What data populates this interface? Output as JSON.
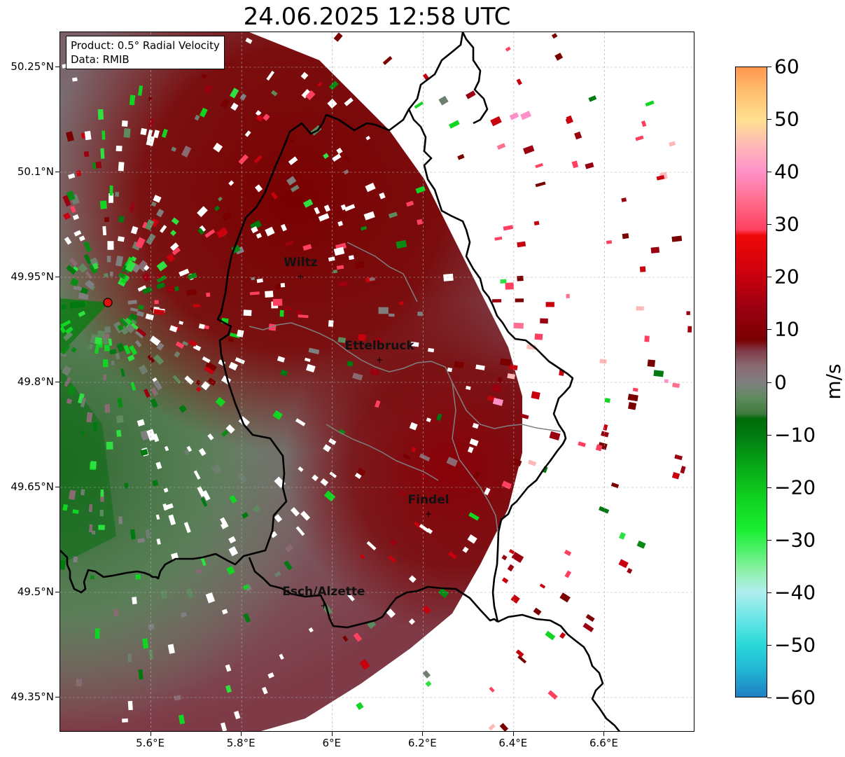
{
  "title": "24.06.2025 12:58 UTC",
  "info": {
    "product": "Product: 0.5° Radial Velocity",
    "source": "Data: RMIB"
  },
  "lat_ticks": [
    {
      "label": "50.25°N",
      "value": 50.25
    },
    {
      "label": "50.1°N",
      "value": 50.1
    },
    {
      "label": "49.95°N",
      "value": 49.95
    },
    {
      "label": "49.8°N",
      "value": 49.8
    },
    {
      "label": "49.65°N",
      "value": 49.65
    },
    {
      "label": "49.5°N",
      "value": 49.5
    },
    {
      "label": "49.35°N",
      "value": 49.35
    }
  ],
  "lon_ticks": [
    {
      "label": "5.6°E",
      "value": 5.6
    },
    {
      "label": "5.8°E",
      "value": 5.8
    },
    {
      "label": "6°E",
      "value": 6.0
    },
    {
      "label": "6.2°E",
      "value": 6.2
    },
    {
      "label": "6.4°E",
      "value": 6.4
    },
    {
      "label": "6.6°E",
      "value": 6.6
    }
  ],
  "extent": {
    "lon_min": 5.4,
    "lon_max": 6.8,
    "lat_min": 49.3,
    "lat_max": 50.3
  },
  "radar_site": {
    "lon": 5.505,
    "lat": 49.914,
    "color": "#e01010"
  },
  "cities": [
    {
      "name": "Wiltz",
      "lon": 5.93,
      "lat": 49.966
    },
    {
      "name": "Ettelbruck",
      "lon": 6.104,
      "lat": 49.847
    },
    {
      "name": "Findel",
      "lon": 6.212,
      "lat": 49.627
    },
    {
      "name": "Esch/Alzette",
      "lon": 5.981,
      "lat": 49.496
    }
  ],
  "colorbar": {
    "unit": "m/s",
    "min": -60,
    "max": 60,
    "ticks": [
      {
        "label": "60",
        "value": 60
      },
      {
        "label": "50",
        "value": 50
      },
      {
        "label": "40",
        "value": 40
      },
      {
        "label": "30",
        "value": 30
      },
      {
        "label": "20",
        "value": 20
      },
      {
        "label": "10",
        "value": 10
      },
      {
        "label": "0",
        "value": 0
      },
      {
        "label": "−10",
        "value": -10
      },
      {
        "label": "−20",
        "value": -20
      },
      {
        "label": "−30",
        "value": -30
      },
      {
        "label": "−40",
        "value": -40
      },
      {
        "label": "−50",
        "value": -50
      },
      {
        "label": "−60",
        "value": -60
      }
    ],
    "stops": [
      {
        "value": -60,
        "color": "#1f7fc4"
      },
      {
        "value": -55,
        "color": "#22b4d4"
      },
      {
        "value": -50,
        "color": "#2ad9d9"
      },
      {
        "value": -45,
        "color": "#6ae6e6"
      },
      {
        "value": -40,
        "color": "#b0eeee"
      },
      {
        "value": -36,
        "color": "#8ef0a8"
      },
      {
        "value": -32,
        "color": "#4ef06a"
      },
      {
        "value": -28,
        "color": "#18ee30"
      },
      {
        "value": -22,
        "color": "#10d020"
      },
      {
        "value": -16,
        "color": "#08a818"
      },
      {
        "value": -10,
        "color": "#007a10"
      },
      {
        "value": -7,
        "color": "#006a08"
      },
      {
        "value": -6,
        "color": "#3f7a3f"
      },
      {
        "value": -3,
        "color": "#5f8a5f"
      },
      {
        "value": 0,
        "color": "#808080"
      },
      {
        "value": 3,
        "color": "#8a6a72"
      },
      {
        "value": 6,
        "color": "#7e3a46"
      },
      {
        "value": 8,
        "color": "#7a0000"
      },
      {
        "value": 14,
        "color": "#9a0010"
      },
      {
        "value": 20,
        "color": "#c8000e"
      },
      {
        "value": 28,
        "color": "#f00808"
      },
      {
        "value": 29,
        "color": "#ff4060"
      },
      {
        "value": 35,
        "color": "#ff7090"
      },
      {
        "value": 40,
        "color": "#ff90c8"
      },
      {
        "value": 45,
        "color": "#ffb8b8"
      },
      {
        "value": 50,
        "color": "#ffe090"
      },
      {
        "value": 55,
        "color": "#ffc070"
      },
      {
        "value": 60,
        "color": "#ff9850"
      }
    ]
  },
  "colors": {
    "approach_green": "#2e7d32",
    "gray_zero": "#7f7f7f",
    "recede_red": "#7a0000",
    "border": "#000000"
  }
}
